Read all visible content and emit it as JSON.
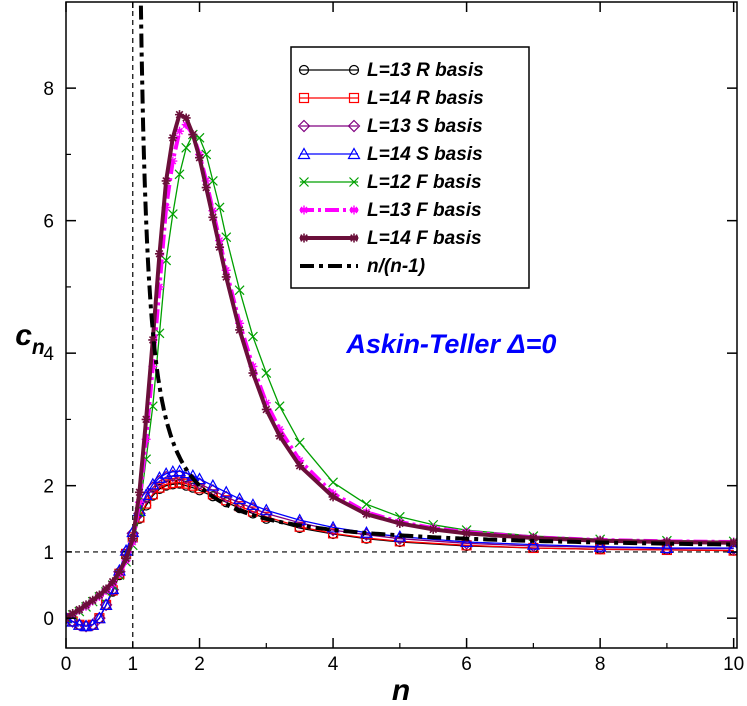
{
  "chart_data": {
    "type": "line",
    "title": "",
    "xlabel": "n",
    "ylabel_base": "c",
    "ylabel_sub": "n",
    "xlim": [
      0,
      10.05
    ],
    "ylim": [
      -0.45,
      9.3
    ],
    "x_ticks": [
      0,
      2,
      4,
      6,
      8,
      10
    ],
    "x_tick_labels": [
      "0",
      "2",
      "4",
      "6",
      "8",
      "10"
    ],
    "x_extra_tick": 1,
    "x_extra_tick_label": "1",
    "y_ticks": [
      0,
      2,
      4,
      6,
      8
    ],
    "y_tick_labels": [
      "0",
      "2",
      "4",
      "6",
      "8"
    ],
    "y_extra_tick": 1,
    "y_extra_tick_label": "1",
    "reference_lines": [
      {
        "axis": "x",
        "value": 1,
        "style": "dashed"
      },
      {
        "axis": "y",
        "value": 1,
        "style": "dashed"
      }
    ],
    "grid": false,
    "legend_position": "top-right",
    "annotation": {
      "text": "Askin-Teller Δ=0",
      "x": 4.2,
      "y": 4.0,
      "color": "#0000ff"
    },
    "series": [
      {
        "name": "L=13 R basis",
        "color": "#000000",
        "marker": "circle",
        "line": "solid",
        "x": [
          0,
          0.1,
          0.2,
          0.3,
          0.4,
          0.5,
          0.6,
          0.7,
          0.8,
          0.9,
          1.0,
          1.1,
          1.2,
          1.3,
          1.4,
          1.5,
          1.6,
          1.7,
          1.8,
          1.9,
          2.0,
          2.2,
          2.4,
          2.6,
          2.8,
          3.0,
          3.5,
          4.0,
          4.5,
          5.0,
          6.0,
          7.0,
          8.0,
          9.0,
          10.0
        ],
        "y": [
          0,
          -0.05,
          -0.1,
          -0.12,
          -0.1,
          0.0,
          0.2,
          0.4,
          0.65,
          0.95,
          1.2,
          1.5,
          1.7,
          1.85,
          1.95,
          2.0,
          2.02,
          2.03,
          2.0,
          1.97,
          1.93,
          1.84,
          1.75,
          1.66,
          1.58,
          1.5,
          1.36,
          1.27,
          1.2,
          1.15,
          1.09,
          1.06,
          1.04,
          1.03,
          1.02
        ]
      },
      {
        "name": "L=14 R basis",
        "color": "#ff0000",
        "marker": "square",
        "line": "solid",
        "x": [
          0,
          0.1,
          0.2,
          0.3,
          0.4,
          0.5,
          0.6,
          0.7,
          0.8,
          0.9,
          1.0,
          1.1,
          1.2,
          1.3,
          1.4,
          1.5,
          1.6,
          1.7,
          1.8,
          1.9,
          2.0,
          2.2,
          2.4,
          2.6,
          2.8,
          3.0,
          3.5,
          4.0,
          4.5,
          5.0,
          6.0,
          7.0,
          8.0,
          9.0,
          10.0
        ],
        "y": [
          0,
          -0.05,
          -0.1,
          -0.12,
          -0.1,
          0.0,
          0.2,
          0.42,
          0.67,
          0.97,
          1.22,
          1.52,
          1.73,
          1.87,
          1.97,
          2.02,
          2.04,
          2.05,
          2.03,
          2.0,
          1.96,
          1.87,
          1.78,
          1.69,
          1.61,
          1.53,
          1.38,
          1.28,
          1.21,
          1.16,
          1.1,
          1.06,
          1.04,
          1.03,
          1.02
        ]
      },
      {
        "name": "L=13 S basis",
        "color": "#800080",
        "marker": "diamond",
        "line": "solid",
        "x": [
          0,
          0.1,
          0.2,
          0.3,
          0.4,
          0.5,
          0.6,
          0.7,
          0.8,
          0.9,
          1.0,
          1.1,
          1.2,
          1.3,
          1.4,
          1.5,
          1.6,
          1.7,
          1.8,
          1.9,
          2.0,
          2.2,
          2.4,
          2.6,
          2.8,
          3.0,
          3.5,
          4.0,
          4.5,
          5.0,
          6.0,
          7.0,
          8.0,
          9.0,
          10.0
        ],
        "y": [
          0,
          -0.05,
          -0.1,
          -0.12,
          -0.1,
          0.0,
          0.2,
          0.43,
          0.7,
          1.0,
          1.28,
          1.58,
          1.82,
          1.97,
          2.07,
          2.13,
          2.15,
          2.15,
          2.12,
          2.08,
          2.03,
          1.93,
          1.83,
          1.74,
          1.66,
          1.58,
          1.44,
          1.33,
          1.26,
          1.2,
          1.13,
          1.09,
          1.07,
          1.05,
          1.05
        ]
      },
      {
        "name": "L=14 S basis",
        "color": "#0000ff",
        "marker": "triangle",
        "line": "solid",
        "x": [
          0,
          0.1,
          0.2,
          0.3,
          0.4,
          0.5,
          0.6,
          0.7,
          0.8,
          0.9,
          1.0,
          1.1,
          1.2,
          1.3,
          1.4,
          1.5,
          1.6,
          1.7,
          1.8,
          1.9,
          2.0,
          2.2,
          2.4,
          2.6,
          2.8,
          3.0,
          3.5,
          4.0,
          4.5,
          5.0,
          6.0,
          7.0,
          8.0,
          9.0,
          10.0
        ],
        "y": [
          0,
          -0.05,
          -0.1,
          -0.12,
          -0.1,
          0.0,
          0.2,
          0.44,
          0.72,
          1.02,
          1.3,
          1.62,
          1.86,
          2.02,
          2.12,
          2.18,
          2.21,
          2.22,
          2.19,
          2.15,
          2.1,
          2.0,
          1.9,
          1.8,
          1.71,
          1.63,
          1.48,
          1.37,
          1.29,
          1.23,
          1.15,
          1.11,
          1.08,
          1.06,
          1.06
        ]
      },
      {
        "name": "L=12 F basis",
        "color": "#00a000",
        "marker": "x",
        "line": "solid",
        "x": [
          0,
          0.1,
          0.2,
          0.3,
          0.4,
          0.5,
          0.6,
          0.7,
          0.8,
          0.9,
          1.0,
          1.1,
          1.2,
          1.3,
          1.4,
          1.5,
          1.6,
          1.7,
          1.8,
          1.9,
          2.0,
          2.1,
          2.2,
          2.3,
          2.4,
          2.6,
          2.8,
          3.0,
          3.2,
          3.5,
          4.0,
          4.5,
          5.0,
          5.5,
          6.0,
          7.0,
          8.0,
          9.0,
          10.0
        ],
        "y": [
          0,
          0.05,
          0.1,
          0.17,
          0.25,
          0.32,
          0.4,
          0.5,
          0.65,
          0.85,
          1.1,
          1.6,
          2.4,
          3.2,
          4.3,
          5.4,
          6.1,
          6.7,
          7.1,
          7.3,
          7.25,
          7.0,
          6.6,
          6.2,
          5.75,
          4.95,
          4.25,
          3.7,
          3.2,
          2.65,
          2.05,
          1.72,
          1.53,
          1.41,
          1.33,
          1.24,
          1.19,
          1.17,
          1.16
        ]
      },
      {
        "name": "L=13 F basis",
        "color": "#ff00ff",
        "marker": "star",
        "line": "dashdot",
        "x": [
          0,
          0.1,
          0.2,
          0.3,
          0.4,
          0.5,
          0.6,
          0.7,
          0.8,
          0.9,
          1.0,
          1.1,
          1.2,
          1.3,
          1.4,
          1.5,
          1.6,
          1.7,
          1.8,
          1.9,
          2.0,
          2.1,
          2.2,
          2.3,
          2.4,
          2.6,
          2.8,
          3.0,
          3.2,
          3.5,
          4.0,
          4.5,
          5.0,
          5.5,
          6.0,
          7.0,
          8.0,
          9.0,
          10.0
        ],
        "y": [
          0,
          0.06,
          0.12,
          0.18,
          0.26,
          0.33,
          0.42,
          0.52,
          0.67,
          0.87,
          1.15,
          1.75,
          2.7,
          3.8,
          5.0,
          6.2,
          6.9,
          7.35,
          7.45,
          7.3,
          7.0,
          6.6,
          6.15,
          5.7,
          5.25,
          4.45,
          3.8,
          3.25,
          2.85,
          2.38,
          1.88,
          1.6,
          1.45,
          1.36,
          1.3,
          1.22,
          1.18,
          1.16,
          1.15
        ]
      },
      {
        "name": "L=14 F basis",
        "color": "#6b0f3a",
        "marker": "asterisk",
        "line": "solid-thick",
        "x": [
          0,
          0.1,
          0.2,
          0.3,
          0.4,
          0.5,
          0.6,
          0.7,
          0.8,
          0.9,
          1.0,
          1.1,
          1.2,
          1.3,
          1.4,
          1.5,
          1.6,
          1.7,
          1.8,
          1.9,
          2.0,
          2.1,
          2.2,
          2.3,
          2.4,
          2.6,
          2.8,
          3.0,
          3.2,
          3.5,
          4.0,
          4.5,
          5.0,
          5.5,
          6.0,
          7.0,
          8.0,
          9.0,
          10.0
        ],
        "y": [
          0,
          0.07,
          0.13,
          0.2,
          0.27,
          0.35,
          0.44,
          0.55,
          0.7,
          0.9,
          1.2,
          1.9,
          3.0,
          4.2,
          5.5,
          6.6,
          7.25,
          7.6,
          7.55,
          7.3,
          6.95,
          6.5,
          6.05,
          5.6,
          5.15,
          4.35,
          3.7,
          3.15,
          2.75,
          2.3,
          1.83,
          1.57,
          1.43,
          1.34,
          1.28,
          1.21,
          1.17,
          1.15,
          1.14
        ]
      },
      {
        "name": "n/(n-1)",
        "color": "#000000",
        "marker": "none",
        "line": "dashdot-thick",
        "formula": "n/(n-1)",
        "x_start": 1.11,
        "x_end": 10.0
      }
    ]
  }
}
